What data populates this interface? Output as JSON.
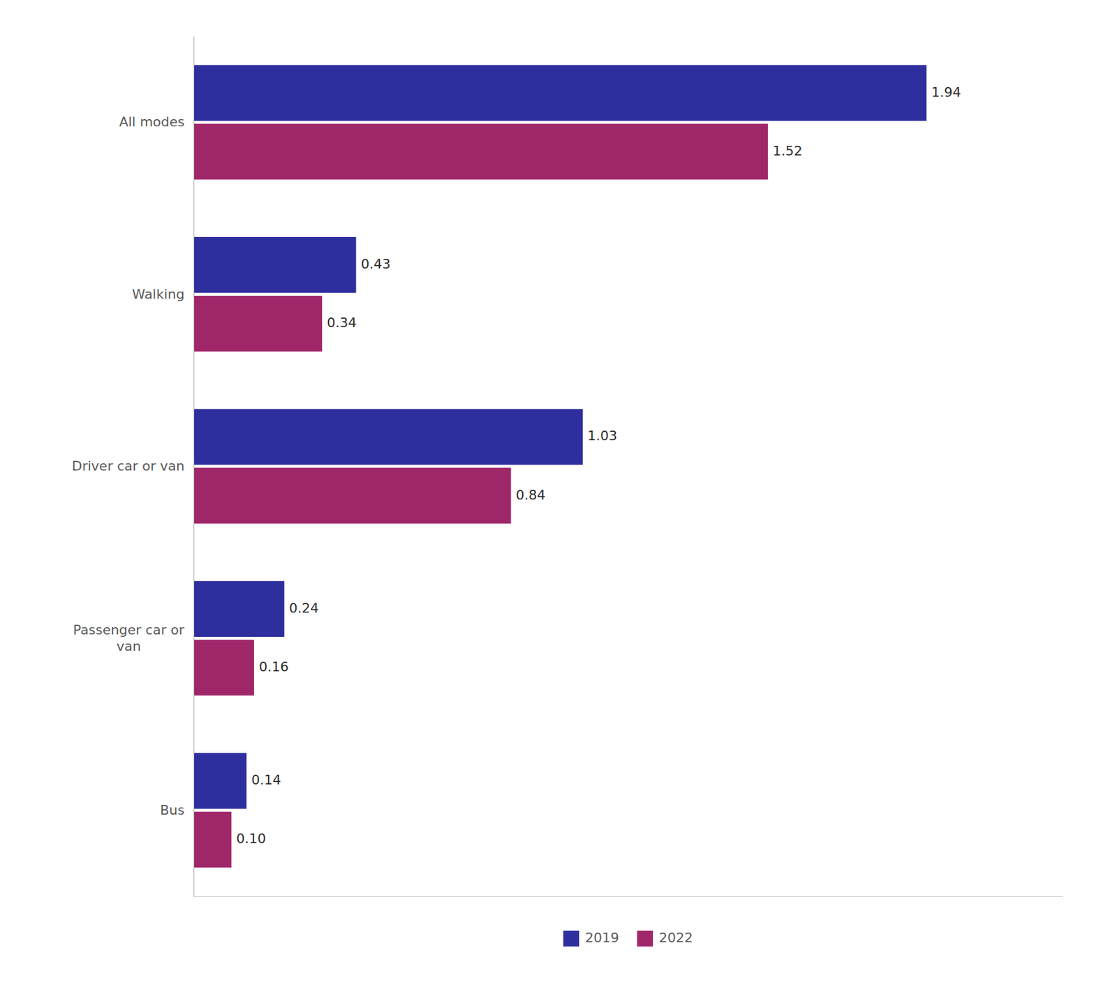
{
  "chart_data": {
    "type": "bar",
    "orientation": "horizontal",
    "categories": [
      "All modes",
      "Walking",
      "Driver car or van",
      "Passenger car or\nvan",
      "Bus"
    ],
    "series": [
      {
        "name": "2019",
        "color": "#2e2e9e",
        "values": [
          1.94,
          0.43,
          1.03,
          0.24,
          0.14
        ],
        "value_labels": [
          "1.94",
          "0.43",
          "1.03",
          "0.24",
          "0.14"
        ]
      },
      {
        "name": "2022",
        "color": "#a0266a",
        "values": [
          1.52,
          0.34,
          0.84,
          0.16,
          0.1
        ],
        "value_labels": [
          "1.52",
          "0.34",
          "0.84",
          "0.16",
          "0.10"
        ]
      }
    ],
    "xlim": [
      0,
      2.3
    ],
    "tick_labels": "y",
    "data_labels": true,
    "legend": "bottom"
  }
}
